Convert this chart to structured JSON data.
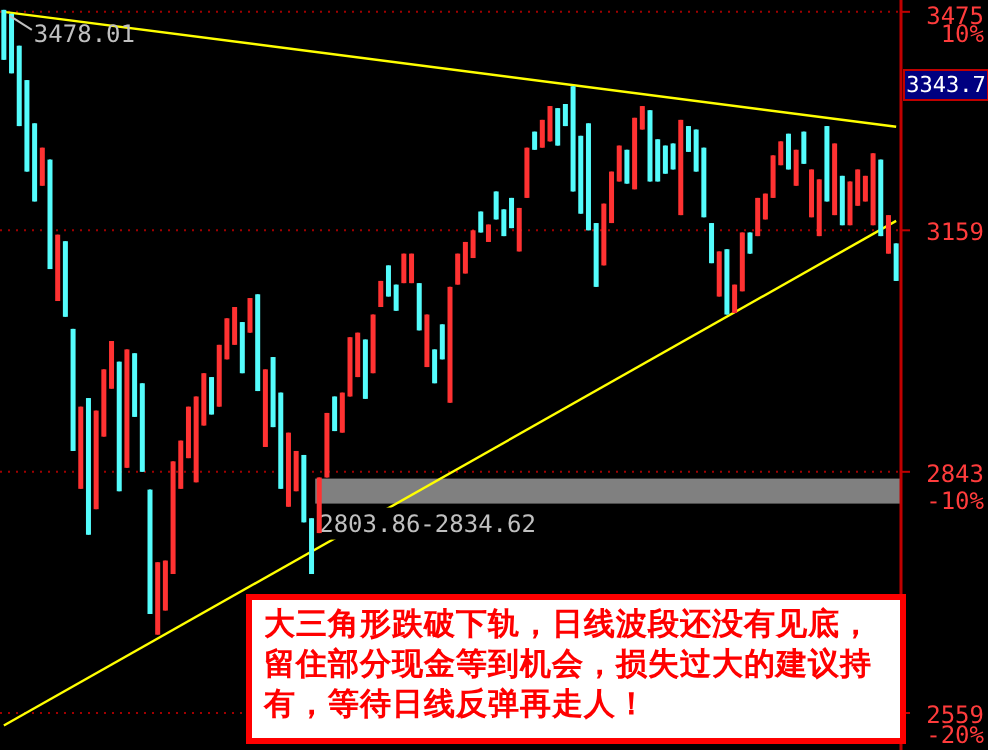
{
  "chart_data": {
    "type": "candlestick",
    "categories": [
      null,
      null,
      null,
      null,
      null,
      null,
      null,
      null,
      null,
      null,
      null,
      null,
      null,
      null,
      null,
      null,
      null,
      null,
      null,
      null,
      null,
      null,
      null,
      null,
      null,
      null,
      null,
      null,
      null,
      null,
      null,
      null,
      null,
      null,
      null,
      null,
      null,
      null,
      null,
      null,
      null,
      null,
      null,
      null,
      null,
      null,
      null,
      null,
      null,
      null,
      null,
      null,
      null,
      null,
      null,
      null,
      null,
      null,
      null,
      null,
      null,
      null,
      null,
      null,
      null,
      null,
      null,
      null,
      null,
      null,
      null,
      null,
      null,
      null,
      null,
      null,
      null,
      null,
      null,
      null,
      null,
      null,
      null,
      null,
      null,
      null,
      null,
      null,
      null,
      null,
      null,
      null,
      null,
      null,
      null,
      null,
      null,
      null,
      null,
      null,
      null,
      null,
      null,
      null,
      null,
      null,
      null,
      null,
      null,
      null,
      null,
      null,
      null,
      null,
      null,
      null,
      null
    ],
    "ohlc": [
      [
        3478.01,
        3478.01,
        3403,
        3403
      ],
      [
        3472,
        3472,
        3383,
        3383
      ],
      [
        3424,
        3424,
        3306,
        3306
      ],
      [
        3373,
        3373,
        3241,
        3241
      ],
      [
        3310,
        3310,
        3199,
        3199
      ],
      [
        3221,
        3275,
        3221,
        3275
      ],
      [
        3258,
        3258,
        3106,
        3106
      ],
      [
        3063,
        3153,
        3063,
        3153
      ],
      [
        3144,
        3144,
        3042,
        3042
      ],
      [
        3026,
        3026,
        2869,
        2869
      ],
      [
        2822,
        2925,
        2822,
        2925
      ],
      [
        2936,
        2936,
        2766,
        2766
      ],
      [
        2797,
        2920,
        2797,
        2920
      ],
      [
        2887,
        2973,
        2887,
        2973
      ],
      [
        2948,
        3010,
        2948,
        3010
      ],
      [
        2983,
        2983,
        2819,
        2819
      ],
      [
        2848,
        2999,
        2848,
        2999
      ],
      [
        2994,
        2994,
        2912,
        2912
      ],
      [
        2955,
        2955,
        2843,
        2843
      ],
      [
        2821,
        2821,
        2672,
        2672
      ],
      [
        2648,
        2733,
        2648,
        2733
      ],
      [
        2676,
        2735,
        2676,
        2735
      ],
      [
        2719,
        2856,
        2719,
        2856
      ],
      [
        2822,
        2882,
        2822,
        2882
      ],
      [
        2860,
        2925,
        2860,
        2925
      ],
      [
        2830,
        2938,
        2830,
        2938
      ],
      [
        2901,
        2968,
        2901,
        2968
      ],
      [
        2963,
        2963,
        2915,
        2915
      ],
      [
        2925,
        3005,
        2925,
        3005
      ],
      [
        2986,
        3040,
        2986,
        3040
      ],
      [
        3005,
        3055,
        3005,
        3055
      ],
      [
        3035,
        3035,
        2968,
        2968
      ],
      [
        3021,
        3067,
        3021,
        3067
      ],
      [
        3072,
        3072,
        2945,
        2945
      ],
      [
        2874,
        2973,
        2874,
        2973
      ],
      [
        2989,
        2989,
        2899,
        2899
      ],
      [
        2943,
        2943,
        2822,
        2822
      ],
      [
        2800,
        2892,
        2800,
        2892
      ],
      [
        2819,
        2869,
        2819,
        2869
      ],
      [
        2864,
        2864,
        2781,
        2781
      ],
      [
        2786,
        2786,
        2719,
        2719
      ],
      [
        2768,
        2836,
        2768,
        2836
      ],
      [
        2836,
        2917,
        2836,
        2917
      ],
      [
        2938,
        2938,
        2894,
        2894
      ],
      [
        2892,
        2943,
        2892,
        2943
      ],
      [
        2938,
        3015,
        2938,
        3015
      ],
      [
        2963,
        3021,
        2963,
        3021
      ],
      [
        3012,
        3012,
        2935,
        2935
      ],
      [
        2968,
        3045,
        2968,
        3045
      ],
      [
        3055,
        3090,
        3055,
        3090
      ],
      [
        3111,
        3111,
        3069,
        3069
      ],
      [
        3085,
        3085,
        3050,
        3050
      ],
      [
        3087,
        3127,
        3087,
        3127
      ],
      [
        3087,
        3127,
        3087,
        3127
      ],
      [
        3087,
        3087,
        3024,
        3024
      ],
      [
        2976,
        3045,
        2976,
        3045
      ],
      [
        2999,
        2999,
        2955,
        2955
      ],
      [
        3032,
        3032,
        2986,
        2986
      ],
      [
        2930,
        3082,
        2930,
        3082
      ],
      [
        3085,
        3127,
        3085,
        3127
      ],
      [
        3100,
        3143,
        3100,
        3143
      ],
      [
        3121,
        3159,
        3121,
        3159
      ],
      [
        3185,
        3185,
        3156,
        3156
      ],
      [
        3143,
        3167,
        3143,
        3167
      ],
      [
        3213,
        3213,
        3174,
        3174
      ],
      [
        3188,
        3188,
        3151,
        3151
      ],
      [
        3204,
        3204,
        3162,
        3162
      ],
      [
        3130,
        3190,
        3130,
        3190
      ],
      [
        3204,
        3275,
        3204,
        3275
      ],
      [
        3298,
        3298,
        3272,
        3272
      ],
      [
        3275,
        3315,
        3275,
        3315
      ],
      [
        3284,
        3335,
        3284,
        3335
      ],
      [
        3332,
        3332,
        3278,
        3278
      ],
      [
        3338,
        3338,
        3306,
        3306
      ],
      [
        3364,
        3364,
        3213,
        3213
      ],
      [
        3292,
        3292,
        3182,
        3182
      ],
      [
        3310,
        3310,
        3159,
        3159
      ],
      [
        3169,
        3169,
        3082,
        3082
      ],
      [
        3111,
        3196,
        3111,
        3196
      ],
      [
        3169,
        3241,
        3169,
        3241
      ],
      [
        3227,
        3278,
        3227,
        3278
      ],
      [
        3272,
        3272,
        3224,
        3224
      ],
      [
        3216,
        3318,
        3216,
        3318
      ],
      [
        3301,
        3335,
        3301,
        3335
      ],
      [
        3329,
        3329,
        3227,
        3227
      ],
      [
        3287,
        3287,
        3227,
        3227
      ],
      [
        3278,
        3278,
        3238,
        3238
      ],
      [
        3281,
        3281,
        3244,
        3244
      ],
      [
        3180,
        3315,
        3180,
        3315
      ],
      [
        3306,
        3306,
        3269,
        3269
      ],
      [
        3301,
        3301,
        3241,
        3241
      ],
      [
        3275,
        3275,
        3177,
        3177
      ],
      [
        3169,
        3169,
        3114,
        3114
      ],
      [
        3069,
        3130,
        3069,
        3130
      ],
      [
        3133,
        3133,
        3045,
        3045
      ],
      [
        3047,
        3085,
        3047,
        3085
      ],
      [
        3076,
        3156,
        3076,
        3156
      ],
      [
        3156,
        3156,
        3127,
        3127
      ],
      [
        3151,
        3204,
        3151,
        3204
      ],
      [
        3174,
        3210,
        3174,
        3210
      ],
      [
        3204,
        3264,
        3204,
        3264
      ],
      [
        3250,
        3284,
        3250,
        3284
      ],
      [
        3295,
        3295,
        3244,
        3244
      ],
      [
        3221,
        3272,
        3221,
        3272
      ],
      [
        3298,
        3298,
        3252,
        3252
      ],
      [
        3177,
        3244,
        3177,
        3244
      ],
      [
        3151,
        3230,
        3151,
        3230
      ],
      [
        3306,
        3306,
        3199,
        3199
      ],
      [
        3180,
        3281,
        3180,
        3281
      ],
      [
        3235,
        3235,
        3166,
        3166
      ],
      [
        3166,
        3227,
        3166,
        3227
      ],
      [
        3193,
        3244,
        3193,
        3244
      ],
      [
        3199,
        3235,
        3199,
        3235
      ],
      [
        3166,
        3267,
        3166,
        3267
      ],
      [
        3258,
        3258,
        3151,
        3151
      ],
      [
        3127,
        3180,
        3127,
        3180
      ],
      [
        3141,
        3141,
        3090,
        3090
      ]
    ],
    "series": [
      {
        "type": "line",
        "color": "#ffff00",
        "values": [
          3475,
          null,
          null,
          null,
          null,
          null,
          null,
          null,
          null,
          null,
          null,
          null,
          null,
          null,
          null,
          null,
          null,
          null,
          null,
          null,
          null,
          null,
          null,
          null,
          null,
          null,
          null,
          null,
          null,
          null,
          null,
          null,
          null,
          null,
          null,
          null,
          null,
          null,
          null,
          null,
          null,
          null,
          null,
          null,
          null,
          null,
          null,
          null,
          null,
          null,
          null,
          null,
          null,
          null,
          null,
          null,
          null,
          null,
          null,
          null,
          null,
          null,
          null,
          null,
          null,
          null,
          null,
          null,
          null,
          null,
          null,
          null,
          null,
          null,
          null,
          null,
          null,
          null,
          null,
          null,
          null,
          null,
          null,
          null,
          null,
          null,
          null,
          null,
          null,
          null,
          null,
          null,
          null,
          null,
          null,
          null,
          null,
          null,
          null,
          null,
          null,
          null,
          null,
          null,
          null,
          null,
          null,
          null,
          null,
          null,
          null,
          null,
          null,
          null,
          null,
          null,
          3305
        ]
      },
      {
        "type": "line",
        "color": "#ffff00",
        "values": [
          2545,
          null,
          null,
          null,
          null,
          null,
          null,
          null,
          null,
          null,
          null,
          null,
          null,
          null,
          null,
          null,
          null,
          null,
          null,
          null,
          null,
          null,
          null,
          null,
          null,
          null,
          null,
          null,
          null,
          null,
          null,
          null,
          null,
          null,
          null,
          null,
          null,
          null,
          null,
          null,
          null,
          null,
          null,
          null,
          null,
          null,
          null,
          null,
          null,
          null,
          null,
          null,
          null,
          null,
          null,
          null,
          null,
          null,
          null,
          null,
          null,
          null,
          null,
          null,
          null,
          null,
          null,
          null,
          null,
          null,
          null,
          null,
          null,
          null,
          null,
          null,
          null,
          null,
          null,
          null,
          null,
          null,
          null,
          null,
          null,
          null,
          null,
          null,
          null,
          null,
          null,
          null,
          null,
          null,
          null,
          null,
          null,
          null,
          null,
          null,
          null,
          null,
          null,
          null,
          null,
          null,
          null,
          null,
          null,
          null,
          null,
          null,
          null,
          null,
          null,
          null,
          3172
        ]
      }
    ],
    "log": true,
    "ylim": [
      2518,
      3493
    ],
    "yticks": [
      3475,
      3159,
      2843,
      2559
    ],
    "y2lim": [
      -21.58,
      10.51
    ],
    "y2ticks": [
      {
        "value": 10,
        "label": "10%"
      },
      {
        "value": -10,
        "label": "-10%"
      },
      {
        "value": -20,
        "label": "-20%"
      }
    ],
    "tick_labels": "y",
    "grid": "y",
    "bands": [
      {
        "axis": "y",
        "from": 2803.86,
        "to": 2834.62,
        "label": "2803.86-2834.62",
        "color": "#808080"
      }
    ],
    "annotations": [
      "3478.01",
      "3343.7",
      "大三角形跌破下轨，日线波段还没有见底，留住部分现金等到机会，损失过大的建议持有，等待日线反弹再走人！"
    ]
  }
}
